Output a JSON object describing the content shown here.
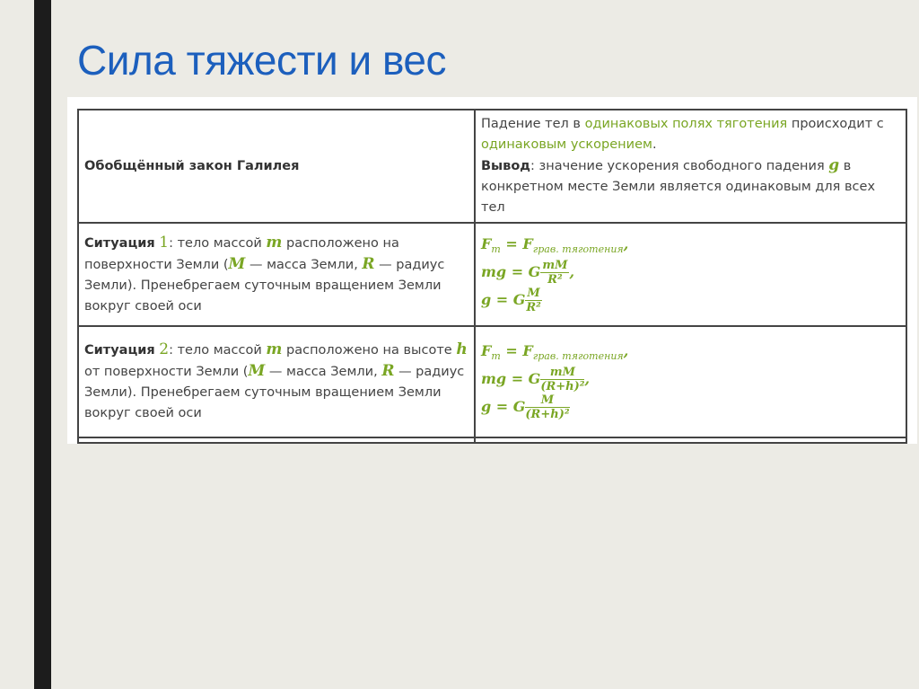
{
  "title": "Сила тяжести и вес",
  "accent_color": "#1c5fbd",
  "highlight_color": "#7aa624",
  "table": {
    "row1": {
      "left": "Обобщённый закон Галилея",
      "right_p1": "Падение тел в ",
      "right_h1": "одинаковых полях тяготения",
      "right_p2": " происходит с ",
      "right_h2": "одинаковым ускорением",
      "right_p3": ".",
      "conclusion_label": "Вывод",
      "conclusion_p1": ": значение ускорения свободного падения ",
      "conclusion_var": "g",
      "conclusion_p2": " в конкретном месте Земли является одинаковым для всех тел"
    },
    "row2": {
      "label": "Ситуация",
      "num": "1",
      "t1": ": тело массой ",
      "m": "m",
      "t2": " расположено на поверхности Земли (",
      "M": "M",
      "t3": " — масса Земли, ",
      "R": "R",
      "t4": " — радиус Земли). Пренебрегаем суточным вращением Земли вокруг своей оси",
      "eq1_lhs": "F",
      "eq1_lhs_sub": "m",
      "eq1_rhs": " = F",
      "eq1_rhs_sub": "грав. тяготения",
      "eq1_end": ",",
      "eq2_lhs": "mg = G",
      "eq2_num": "mM",
      "eq2_den": "R²",
      "eq2_end": ",",
      "eq3_lhs": "g = G",
      "eq3_num": "M",
      "eq3_den": "R²"
    },
    "row3": {
      "label": "Ситуация",
      "num": "2",
      "t1": ": тело массой ",
      "m": "m",
      "t2": " расположено на высоте ",
      "h": "h",
      "t3": " от поверхности Земли (",
      "M": "M",
      "t4": " — масса Земли, ",
      "R": "R",
      "t5": " — радиус Земли). Пренебрегаем суточным вращением Земли вокруг своей оси",
      "eq1_lhs": "F",
      "eq1_lhs_sub": "m",
      "eq1_rhs": " = F",
      "eq1_rhs_sub": "грав. тяготения",
      "eq1_end": ",",
      "eq2_lhs": "mg = G",
      "eq2_num": "mM",
      "eq2_den": "(R+h)²",
      "eq2_end": ",",
      "eq3_lhs": "g = G",
      "eq3_num": "M",
      "eq3_den": "(R+h)²"
    }
  }
}
